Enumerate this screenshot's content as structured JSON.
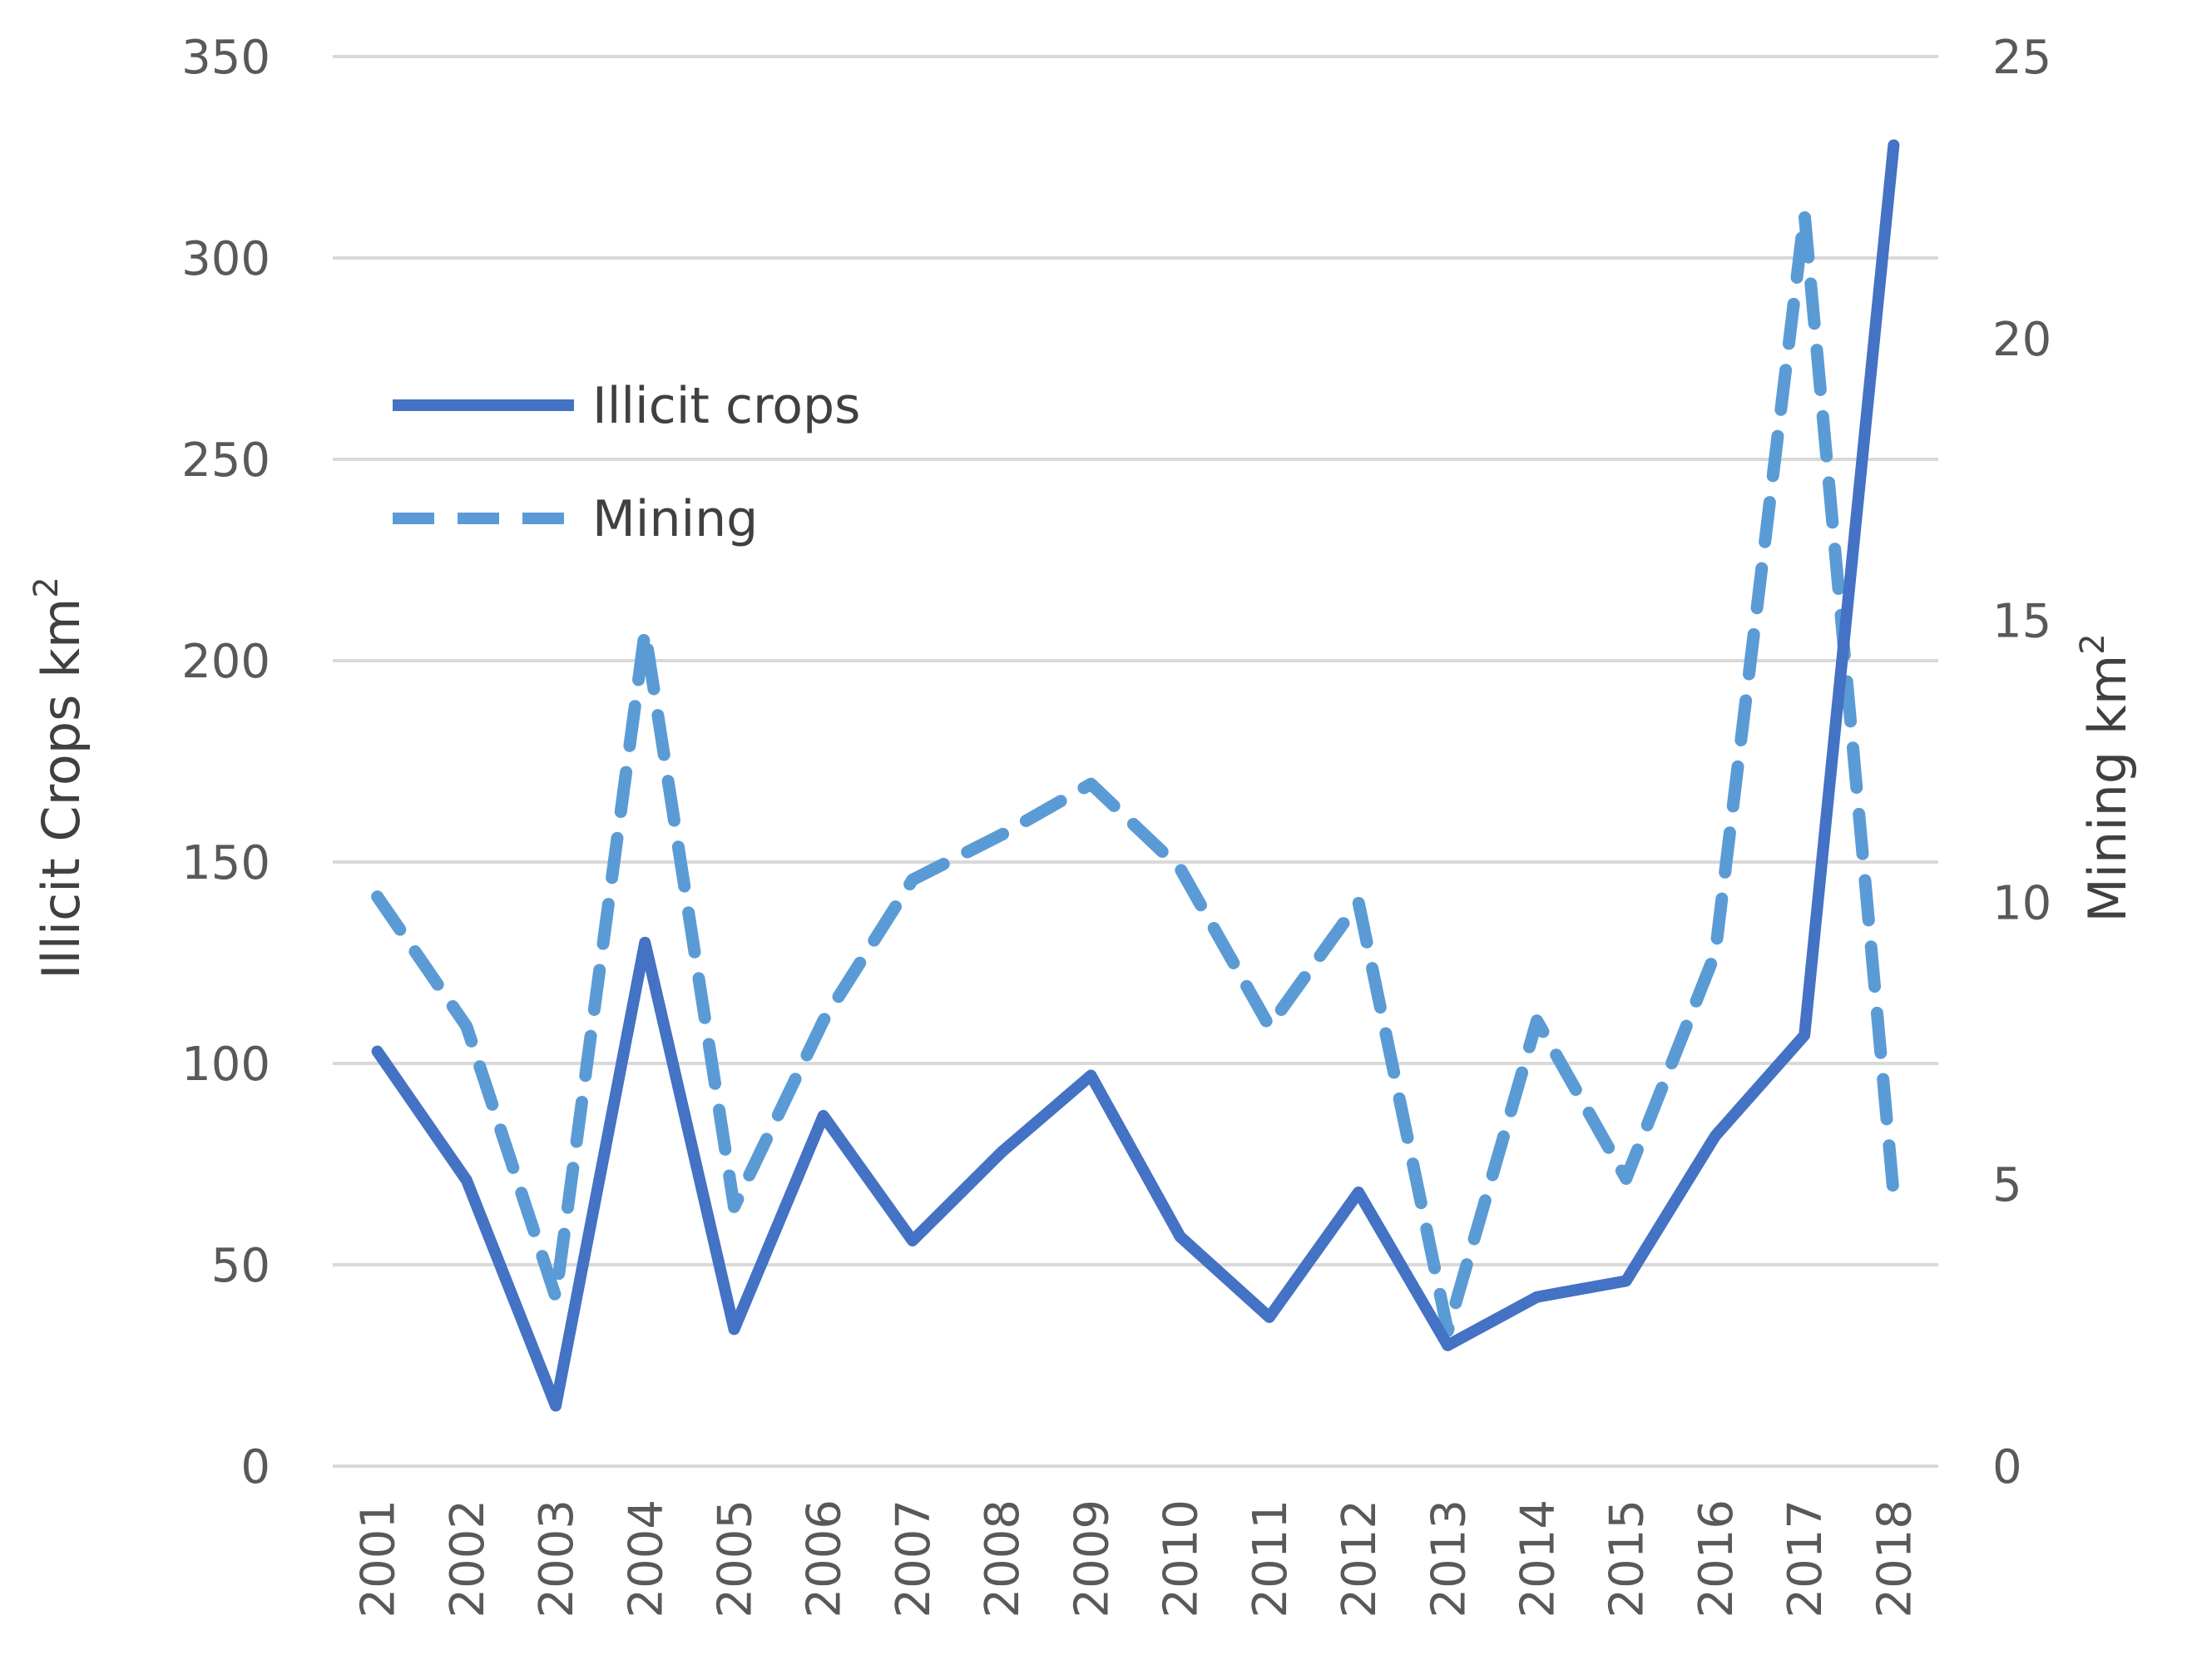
{
  "colors": {
    "illicit_crops": "#4472C4",
    "mining": "#5B9BD5",
    "grid": "#D9D9D9",
    "text": "#595959"
  },
  "legend": {
    "illicit_crops_label": "Illicit crops",
    "mining_label": "Mining"
  },
  "axes": {
    "left_title": "Illicit Crops km",
    "left_title_sup": "2",
    "right_title": "Mining km",
    "right_title_sup": "2"
  },
  "chart_data": {
    "type": "line",
    "categories": [
      "2001",
      "2002",
      "2003",
      "2004",
      "2005",
      "2006",
      "2007",
      "2008",
      "2009",
      "2010",
      "2011",
      "2012",
      "2013",
      "2014",
      "2015",
      "2016",
      "2017",
      "2018"
    ],
    "series": [
      {
        "name": "Illicit crops",
        "axis": "left",
        "style": "solid",
        "values": [
          103,
          71,
          15,
          130,
          34,
          87,
          56,
          78,
          97,
          57,
          37,
          68,
          30,
          42,
          46,
          82,
          107,
          328
        ]
      },
      {
        "name": "Mining",
        "axis": "right",
        "style": "dashed",
        "values": [
          10.1,
          7.8,
          3.0,
          14.8,
          4.6,
          7.9,
          10.4,
          11.2,
          12.1,
          10.6,
          7.8,
          10.0,
          2.4,
          7.9,
          5.1,
          9.1,
          22.2,
          4.8
        ]
      }
    ],
    "left_axis": {
      "ylim": [
        0,
        350
      ],
      "ticks": [
        "0",
        "50",
        "100",
        "150",
        "200",
        "250",
        "300",
        "350"
      ]
    },
    "right_axis": {
      "ylim": [
        0,
        25
      ],
      "ticks": [
        "0",
        "5",
        "10",
        "15",
        "20",
        "25"
      ]
    },
    "legend_position": "top-left",
    "grid": true
  }
}
